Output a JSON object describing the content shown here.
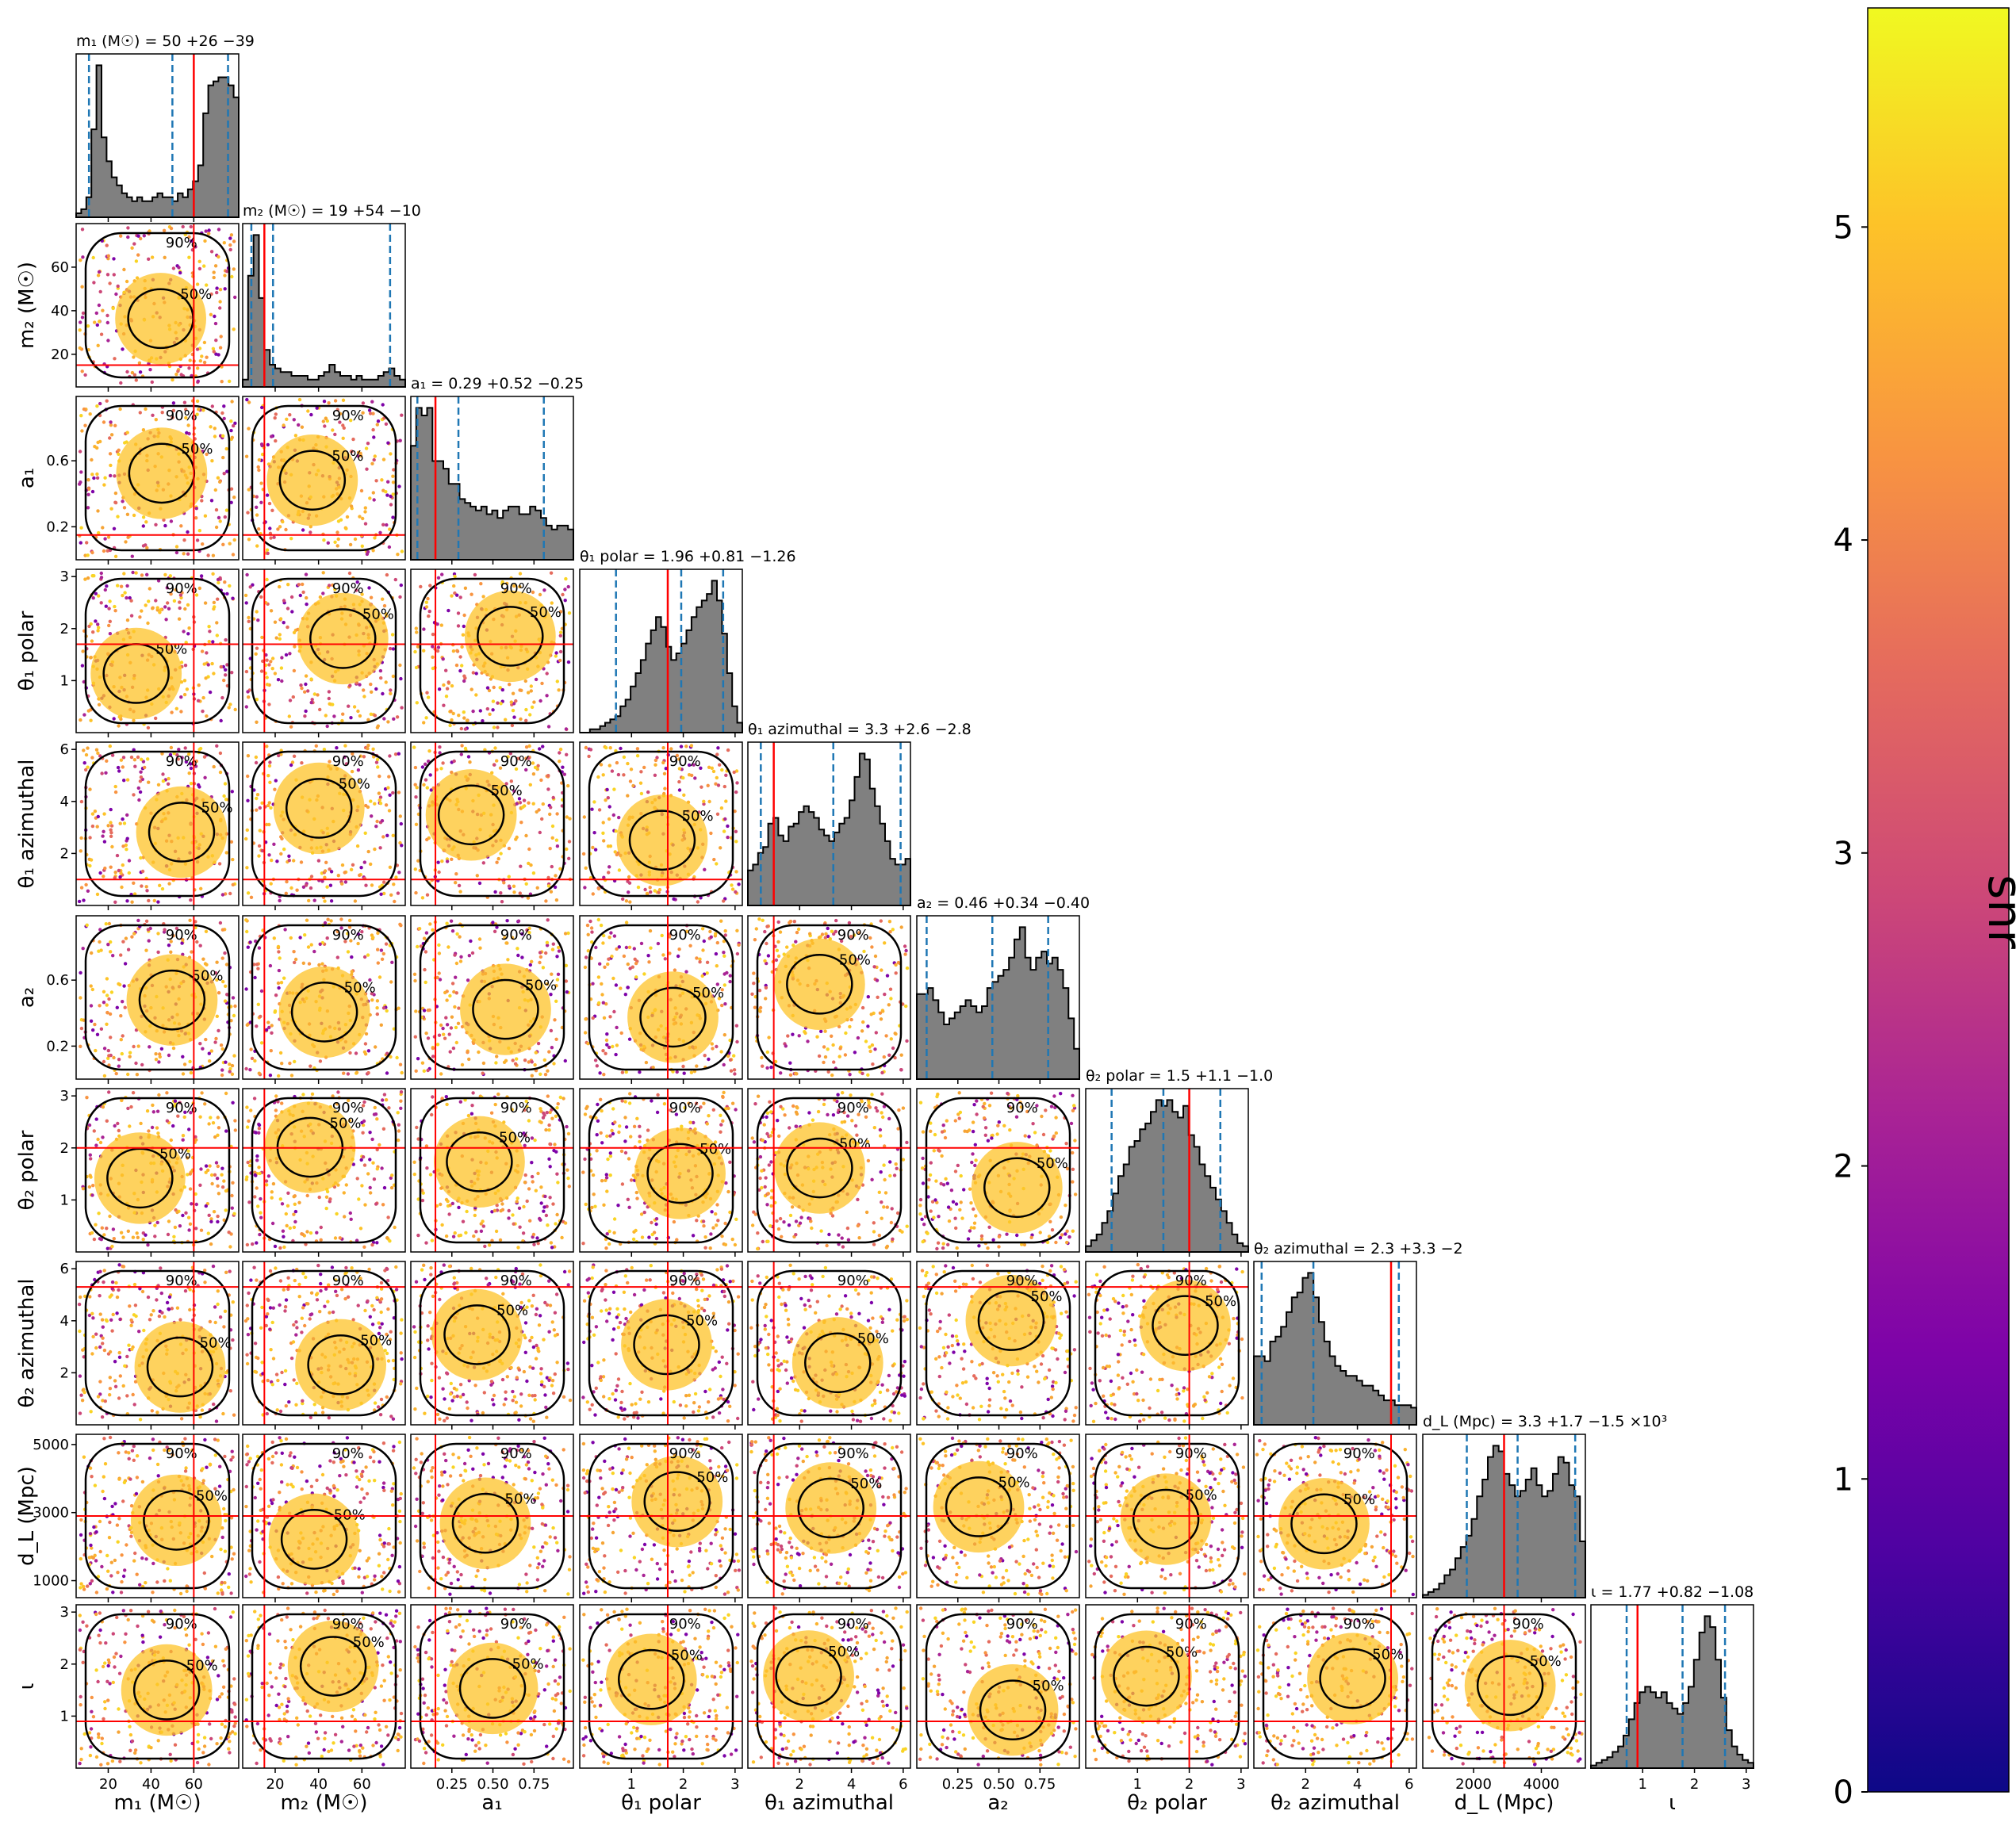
{
  "chart_data": {
    "type": "corner",
    "parameters": [
      {
        "key": "m1",
        "label": "m₁ (M☉)",
        "title": "m₁ (M☉) = 50 +26 −39",
        "range": [
          5,
          81
        ],
        "ticks": [
          20,
          40,
          60
        ],
        "injection": 60,
        "quantiles": [
          11,
          50,
          76
        ],
        "hist": [
          1,
          2,
          5,
          22,
          38,
          20,
          14,
          10,
          8,
          6,
          5,
          4,
          5,
          4,
          4,
          5,
          6,
          5,
          5,
          4,
          6,
          5,
          7,
          9,
          13,
          26,
          33,
          34,
          35,
          35,
          33,
          30
        ]
      },
      {
        "key": "m2",
        "label": "m₂ (M☉)",
        "title": "m₂ (M☉) = 19 +54 −10",
        "range": [
          5,
          80
        ],
        "ticks": [
          20,
          40,
          60
        ],
        "injection": 15,
        "quantiles": [
          9,
          19,
          73
        ],
        "hist": [
          2,
          30,
          41,
          24,
          10,
          6,
          5,
          4,
          4,
          3,
          3,
          3,
          2,
          2,
          3,
          4,
          6,
          4,
          3,
          3,
          2,
          3,
          2,
          2,
          2,
          3,
          4,
          5,
          3,
          2
        ]
      },
      {
        "key": "a1",
        "label": "a₁",
        "title": "a₁ = 0.29 +0.52 −0.25",
        "range": [
          0,
          0.99
        ],
        "ticks": [
          0.25,
          0.5,
          0.75
        ],
        "ticklabels": [
          "0.25",
          "0.50",
          "0.75"
        ],
        "injection": 0.15,
        "quantiles": [
          0.04,
          0.29,
          0.81
        ],
        "hist": [
          30,
          40,
          38,
          40,
          26,
          26,
          24,
          20,
          20,
          16,
          15,
          14,
          13,
          14,
          12,
          13,
          11,
          13,
          14,
          14,
          12,
          12,
          14,
          13,
          11,
          9,
          8,
          9,
          9,
          8
        ]
      },
      {
        "key": "t1p",
        "label": "θ₁ polar",
        "title": "θ₁ polar = 1.96 +0.81 −1.26",
        "range": [
          0,
          3.14
        ],
        "ticks": [
          1,
          2,
          3
        ],
        "injection": 1.7,
        "quantiles": [
          0.7,
          1.96,
          2.77
        ],
        "hist": [
          0,
          0,
          1,
          1,
          2,
          3,
          4,
          5,
          8,
          10,
          14,
          18,
          22,
          27,
          31,
          35,
          32,
          26,
          22,
          24,
          27,
          31,
          35,
          38,
          40,
          42,
          46,
          40,
          30,
          18,
          8,
          3
        ]
      },
      {
        "key": "t1a",
        "label": "θ₁ azimuthal",
        "title": "θ₁ azimuthal = 3.3 +2.6 −2.8",
        "range": [
          0,
          6.28
        ],
        "ticks": [
          2,
          4,
          6
        ],
        "injection": 1.0,
        "quantiles": [
          0.5,
          3.3,
          5.9
        ],
        "hist": [
          12,
          14,
          18,
          20,
          28,
          30,
          24,
          22,
          27,
          28,
          32,
          34,
          32,
          30,
          26,
          24,
          22,
          25,
          28,
          30,
          36,
          44,
          52,
          50,
          40,
          34,
          28,
          22,
          16,
          14,
          14,
          16
        ]
      },
      {
        "key": "a2",
        "label": "a₂",
        "title": "a₂ = 0.46 +0.34 −0.40",
        "range": [
          0,
          0.99
        ],
        "ticks": [
          0.25,
          0.5,
          0.75
        ],
        "ticklabels": [
          "0.25",
          "0.50",
          "0.75"
        ],
        "injection": null,
        "quantiles": [
          0.06,
          0.46,
          0.8
        ],
        "hist": [
          28,
          28,
          30,
          26,
          22,
          18,
          20,
          22,
          24,
          26,
          24,
          22,
          24,
          30,
          32,
          34,
          36,
          40,
          46,
          50,
          40,
          36,
          40,
          42,
          38,
          40,
          36,
          30,
          20,
          10
        ]
      },
      {
        "key": "t2p",
        "label": "θ₂ polar",
        "title": "θ₂ polar = 1.5 +1.1 −1.0",
        "range": [
          0,
          3.14
        ],
        "ticks": [
          1,
          2,
          3
        ],
        "injection": 2.0,
        "quantiles": [
          0.5,
          1.5,
          2.6
        ],
        "hist": [
          2,
          4,
          6,
          10,
          14,
          20,
          26,
          30,
          36,
          38,
          42,
          44,
          48,
          52,
          50,
          52,
          48,
          46,
          50,
          40,
          36,
          30,
          26,
          22,
          18,
          14,
          10,
          6,
          3,
          2
        ]
      },
      {
        "key": "t2a",
        "label": "θ₂ azimuthal",
        "title": "θ₂ azimuthal = 2.3 +3.3 −2",
        "range": [
          0,
          6.28
        ],
        "ticks": [
          2,
          4,
          6
        ],
        "injection": 5.3,
        "quantiles": [
          0.3,
          2.3,
          5.6
        ],
        "hist": [
          28,
          28,
          26,
          34,
          36,
          40,
          46,
          52,
          54,
          60,
          62,
          52,
          42,
          34,
          28,
          24,
          22,
          20,
          20,
          18,
          16,
          16,
          14,
          12,
          10,
          10,
          8,
          8,
          8,
          7
        ]
      },
      {
        "key": "dL",
        "label": "d_L (Mpc)",
        "title": "d_L (Mpc) = 3.3 +1.7 −1.5 ×10³",
        "range": [
          500,
          5300
        ],
        "ticks": [
          2000,
          4000
        ],
        "injection": 2900,
        "quantiles": [
          1800,
          3300,
          5000
        ],
        "hist": [
          1,
          2,
          3,
          5,
          8,
          10,
          14,
          18,
          22,
          28,
          36,
          42,
          50,
          54,
          52,
          44,
          40,
          36,
          38,
          42,
          46,
          40,
          36,
          38,
          44,
          50,
          48,
          40,
          36,
          20
        ]
      },
      {
        "key": "iota",
        "label": "ι",
        "title": "ι = 1.77 +0.82 −1.08",
        "range": [
          0,
          3.14
        ],
        "ticks": [
          1,
          2,
          3
        ],
        "injection": 0.9,
        "quantiles": [
          0.69,
          1.77,
          2.59
        ],
        "hist": [
          1,
          2,
          3,
          4,
          6,
          8,
          12,
          18,
          24,
          28,
          30,
          28,
          26,
          28,
          24,
          22,
          20,
          24,
          30,
          40,
          50,
          56,
          52,
          40,
          26,
          14,
          8,
          5,
          3,
          2
        ]
      }
    ],
    "row_ticks": {
      "m2": [
        20,
        40,
        60
      ],
      "a1": [
        0.2,
        0.6
      ],
      "t1p": [
        1,
        2,
        3
      ],
      "t1a": [
        2,
        4,
        6
      ],
      "a2": [
        0.2,
        0.6
      ],
      "t2p": [
        1,
        2,
        3
      ],
      "t2a": [
        2,
        4,
        6
      ],
      "dL": [
        1000,
        3000,
        5000
      ],
      "iota": [
        1,
        2,
        3
      ]
    },
    "colorbar": {
      "label": "snr",
      "min": 0,
      "max": 5.7,
      "ticks": [
        0,
        1,
        2,
        3,
        4,
        5
      ],
      "colormap": "plasma"
    },
    "contour_labels": [
      "50%",
      "90%"
    ],
    "colors": {
      "hist_fill": "#808080",
      "hist_edge": "#000000",
      "injection": "#ff0000",
      "quantile": "#1f77b4"
    }
  }
}
